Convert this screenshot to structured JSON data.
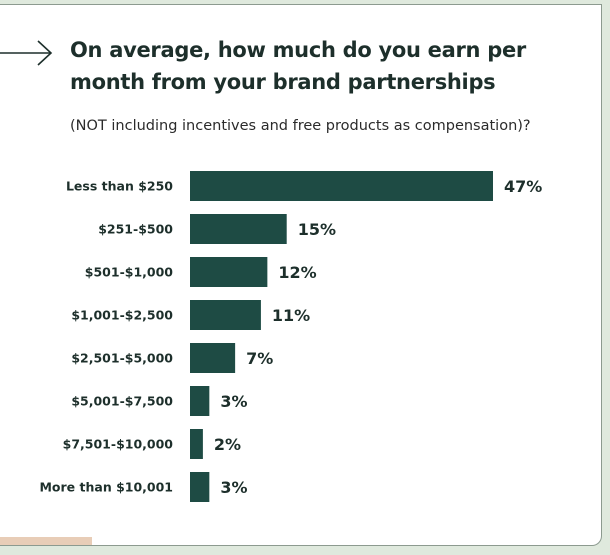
{
  "title": "On average, how much do you earn per month from your brand partnerships",
  "subtitle": "(NOT including incentives and free products as compensation)?",
  "icons": {
    "arrow": "arrow-right-icon"
  },
  "colors": {
    "bar": "#1e4b44",
    "text": "#1d2f2b",
    "page_background": "#dfe9dd",
    "card_background": "#ffffff"
  },
  "chart_data": {
    "type": "bar",
    "orientation": "horizontal",
    "categories": [
      "Less than $250",
      "$251-$500",
      "$501-$1,000",
      "$1,001-$2,500",
      "$2,501-$5,000",
      "$5,001-$7,500",
      "$7,501-$10,000",
      "More than $10,001"
    ],
    "values": [
      47,
      15,
      12,
      11,
      7,
      3,
      2,
      3
    ],
    "value_labels": [
      "47%",
      "15%",
      "12%",
      "11%",
      "7%",
      "3%",
      "2%",
      "3%"
    ],
    "xlim": [
      0,
      47
    ],
    "grid": false,
    "legend": "none"
  }
}
